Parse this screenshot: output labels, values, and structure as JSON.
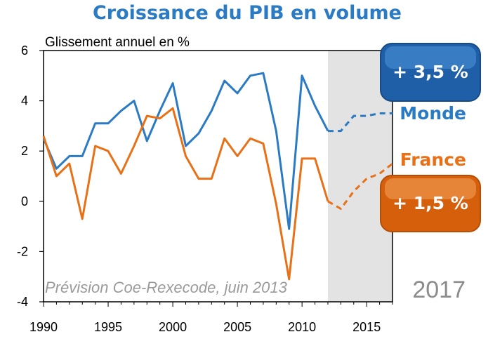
{
  "chart_data": {
    "type": "line",
    "title": "Croissance du PIB en volume",
    "subtitle": "Glissement annuel en %",
    "xlim": [
      1990,
      2017
    ],
    "ylim": [
      -4,
      6
    ],
    "x_ticks": [
      "1990",
      "1995",
      "2000",
      "2005",
      "2010",
      "2015"
    ],
    "y_ticks": [
      "6",
      "4",
      "2",
      "0",
      "-2",
      "-4"
    ],
    "forecast_start": 2012,
    "series": [
      {
        "name": "Monde",
        "color": "#2b7bc4",
        "x": [
          1990,
          1991,
          1992,
          1993,
          1994,
          1995,
          1996,
          1997,
          1998,
          1999,
          2000,
          2001,
          2002,
          2003,
          2004,
          2005,
          2006,
          2007,
          2008,
          2009,
          2010,
          2011,
          2012
        ],
        "values": [
          2.5,
          1.3,
          1.8,
          1.8,
          3.1,
          3.1,
          3.6,
          4.0,
          2.4,
          3.6,
          4.7,
          2.2,
          2.7,
          3.6,
          4.8,
          4.3,
          5.0,
          5.1,
          2.8,
          -1.1,
          5.0,
          3.8,
          2.8
        ],
        "forecast_x": [
          2012,
          2013,
          2014,
          2015,
          2016,
          2017
        ],
        "forecast_values": [
          2.8,
          2.8,
          3.4,
          3.4,
          3.5,
          3.5
        ],
        "badge": "+ 3,5 %"
      },
      {
        "name": "France",
        "color": "#e87117",
        "x": [
          1990,
          1991,
          1992,
          1993,
          1994,
          1995,
          1996,
          1997,
          1998,
          1999,
          2000,
          2001,
          2002,
          2003,
          2004,
          2005,
          2006,
          2007,
          2008,
          2009,
          2010,
          2011,
          2012
        ],
        "values": [
          2.6,
          1.0,
          1.5,
          -0.7,
          2.2,
          2.0,
          1.1,
          2.2,
          3.4,
          3.3,
          3.7,
          1.8,
          0.9,
          0.9,
          2.5,
          1.8,
          2.5,
          2.3,
          -0.1,
          -3.1,
          1.7,
          1.7,
          0.0
        ],
        "forecast_x": [
          2012,
          2013,
          2014,
          2015,
          2016,
          2017
        ],
        "forecast_values": [
          0.0,
          -0.3,
          0.4,
          0.9,
          1.1,
          1.5
        ],
        "badge": "+ 1,5 %"
      }
    ],
    "source": "Prévision Coe-Rexecode, juin 2013",
    "end_year_label": "2017"
  }
}
